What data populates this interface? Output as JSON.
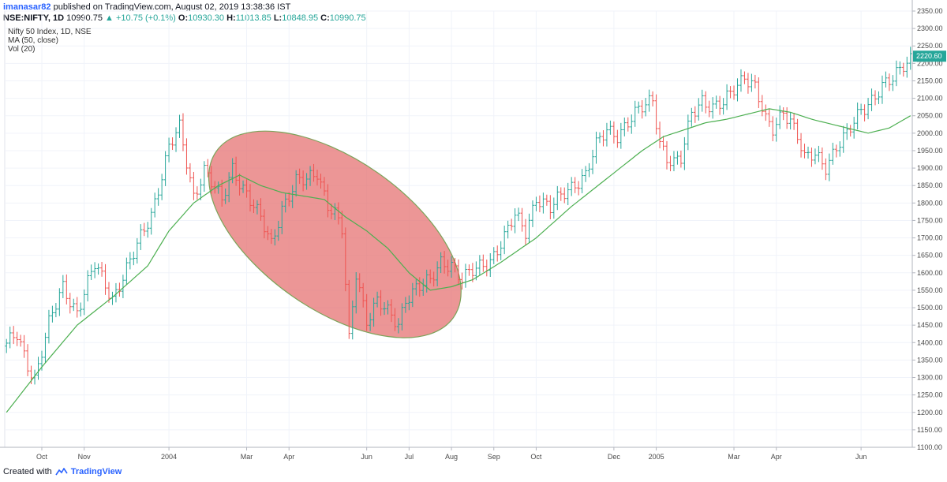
{
  "header": {
    "author": "imanasar82",
    "published": "published on TradingView.com, August 02, 2019 13:38:36 IST"
  },
  "ohlc_line": {
    "symbol": "NSE:NIFTY, 1D",
    "last": "10990.75",
    "change": "+10.75 (+0.1%)",
    "o_label": "O:",
    "o": "10930.30",
    "h_label": "H:",
    "h": "11013.85",
    "l_label": "L:",
    "l": "10848.95",
    "c_label": "C:",
    "c": "10990.75"
  },
  "footer": {
    "created_with": "Created with",
    "brand": "TradingView"
  },
  "colors": {
    "up": "#26a69a",
    "down": "#ef5350",
    "ma": "#4caf50",
    "ellipse_fill": "#e57373",
    "ellipse_stroke": "#7da35a",
    "price_tag": "#26a69a"
  },
  "chart_data": {
    "type": "bar",
    "legend": [
      "Nifty 50 Index, 1D, NSE",
      "MA (50, close)",
      "Vol (20)"
    ],
    "ylim": [
      1100,
      2350
    ],
    "y_ticks": [
      "1100.00",
      "1150.00",
      "1200.00",
      "1250.00",
      "1300.00",
      "1350.00",
      "1400.00",
      "1450.00",
      "1500.00",
      "1550.00",
      "1600.00",
      "1650.00",
      "1700.00",
      "1750.00",
      "1800.00",
      "1850.00",
      "1900.00",
      "1950.00",
      "2000.00",
      "2050.00",
      "2100.00",
      "2150.00",
      "2200.00",
      "2250.00",
      "2300.00",
      "2350.00"
    ],
    "x_ticks": [
      {
        "label": "Oct",
        "bar": 10
      },
      {
        "label": "Nov",
        "bar": 22
      },
      {
        "label": "2004",
        "bar": 46
      },
      {
        "label": "Mar",
        "bar": 68
      },
      {
        "label": "Apr",
        "bar": 80
      },
      {
        "label": "Jun",
        "bar": 102
      },
      {
        "label": "Jul",
        "bar": 114
      },
      {
        "label": "Aug",
        "bar": 126
      },
      {
        "label": "Sep",
        "bar": 138
      },
      {
        "label": "Oct",
        "bar": 150
      },
      {
        "label": "Dec",
        "bar": 172
      },
      {
        "label": "2005",
        "bar": 184
      },
      {
        "label": "Mar",
        "bar": 206
      },
      {
        "label": "Apr",
        "bar": 218
      },
      {
        "label": "Jun",
        "bar": 242
      }
    ],
    "last_price_label": "2220.60",
    "close_anchors": [
      [
        0,
        1390
      ],
      [
        3,
        1420
      ],
      [
        6,
        1340
      ],
      [
        8,
        1300
      ],
      [
        12,
        1450
      ],
      [
        16,
        1560
      ],
      [
        20,
        1490
      ],
      [
        25,
        1620
      ],
      [
        30,
        1530
      ],
      [
        36,
        1650
      ],
      [
        41,
        1770
      ],
      [
        46,
        1960
      ],
      [
        49,
        2010
      ],
      [
        53,
        1820
      ],
      [
        56,
        1900
      ],
      [
        61,
        1800
      ],
      [
        64,
        1900
      ],
      [
        68,
        1830
      ],
      [
        72,
        1750
      ],
      [
        75,
        1680
      ],
      [
        78,
        1790
      ],
      [
        82,
        1860
      ],
      [
        85,
        1860
      ],
      [
        88,
        1890
      ],
      [
        91,
        1800
      ],
      [
        93,
        1770
      ],
      [
        95,
        1720
      ],
      [
        97,
        1400
      ],
      [
        99,
        1600
      ],
      [
        102,
        1470
      ],
      [
        105,
        1520
      ],
      [
        108,
        1480
      ],
      [
        111,
        1450
      ],
      [
        113,
        1530
      ],
      [
        116,
        1560
      ],
      [
        120,
        1570
      ],
      [
        123,
        1630
      ],
      [
        126,
        1630
      ],
      [
        129,
        1580
      ],
      [
        132,
        1600
      ],
      [
        137,
        1640
      ],
      [
        141,
        1700
      ],
      [
        144,
        1760
      ],
      [
        147,
        1720
      ],
      [
        150,
        1820
      ],
      [
        154,
        1780
      ],
      [
        158,
        1830
      ],
      [
        161,
        1860
      ],
      [
        164,
        1880
      ],
      [
        167,
        1960
      ],
      [
        170,
        2010
      ],
      [
        173,
        2000
      ],
      [
        176,
        2030
      ],
      [
        180,
        2070
      ],
      [
        183,
        2100
      ],
      [
        185,
        1980
      ],
      [
        187,
        1930
      ],
      [
        189,
        1910
      ],
      [
        191,
        1920
      ],
      [
        194,
        2060
      ],
      [
        197,
        2100
      ],
      [
        200,
        2070
      ],
      [
        203,
        2080
      ],
      [
        206,
        2130
      ],
      [
        209,
        2170
      ],
      [
        212,
        2130
      ],
      [
        215,
        2030
      ],
      [
        217,
        2010
      ],
      [
        220,
        2070
      ],
      [
        222,
        2040
      ],
      [
        224,
        1990
      ],
      [
        226,
        1920
      ],
      [
        229,
        1940
      ],
      [
        232,
        1910
      ],
      [
        235,
        1960
      ],
      [
        238,
        1990
      ],
      [
        242,
        2070
      ],
      [
        245,
        2100
      ],
      [
        248,
        2130
      ],
      [
        251,
        2150
      ],
      [
        254,
        2200
      ],
      [
        256,
        2220
      ]
    ],
    "ma_anchors": [
      [
        0,
        1200
      ],
      [
        10,
        1330
      ],
      [
        20,
        1450
      ],
      [
        30,
        1530
      ],
      [
        40,
        1620
      ],
      [
        46,
        1720
      ],
      [
        53,
        1800
      ],
      [
        60,
        1850
      ],
      [
        66,
        1880
      ],
      [
        72,
        1850
      ],
      [
        78,
        1830
      ],
      [
        84,
        1820
      ],
      [
        90,
        1810
      ],
      [
        96,
        1760
      ],
      [
        102,
        1720
      ],
      [
        108,
        1670
      ],
      [
        114,
        1600
      ],
      [
        120,
        1550
      ],
      [
        126,
        1560
      ],
      [
        132,
        1580
      ],
      [
        140,
        1630
      ],
      [
        150,
        1700
      ],
      [
        160,
        1790
      ],
      [
        170,
        1870
      ],
      [
        180,
        1950
      ],
      [
        186,
        1990
      ],
      [
        192,
        2010
      ],
      [
        198,
        2030
      ],
      [
        204,
        2040
      ],
      [
        210,
        2055
      ],
      [
        216,
        2070
      ],
      [
        222,
        2060
      ],
      [
        228,
        2040
      ],
      [
        234,
        2025
      ],
      [
        240,
        2010
      ],
      [
        244,
        2000
      ],
      [
        250,
        2015
      ],
      [
        256,
        2050
      ]
    ],
    "highlight_ellipse": {
      "center_bar": 93,
      "center_y": 1710,
      "rx_bars": 41,
      "ry_y": 430,
      "rotation_deg": 35
    }
  }
}
